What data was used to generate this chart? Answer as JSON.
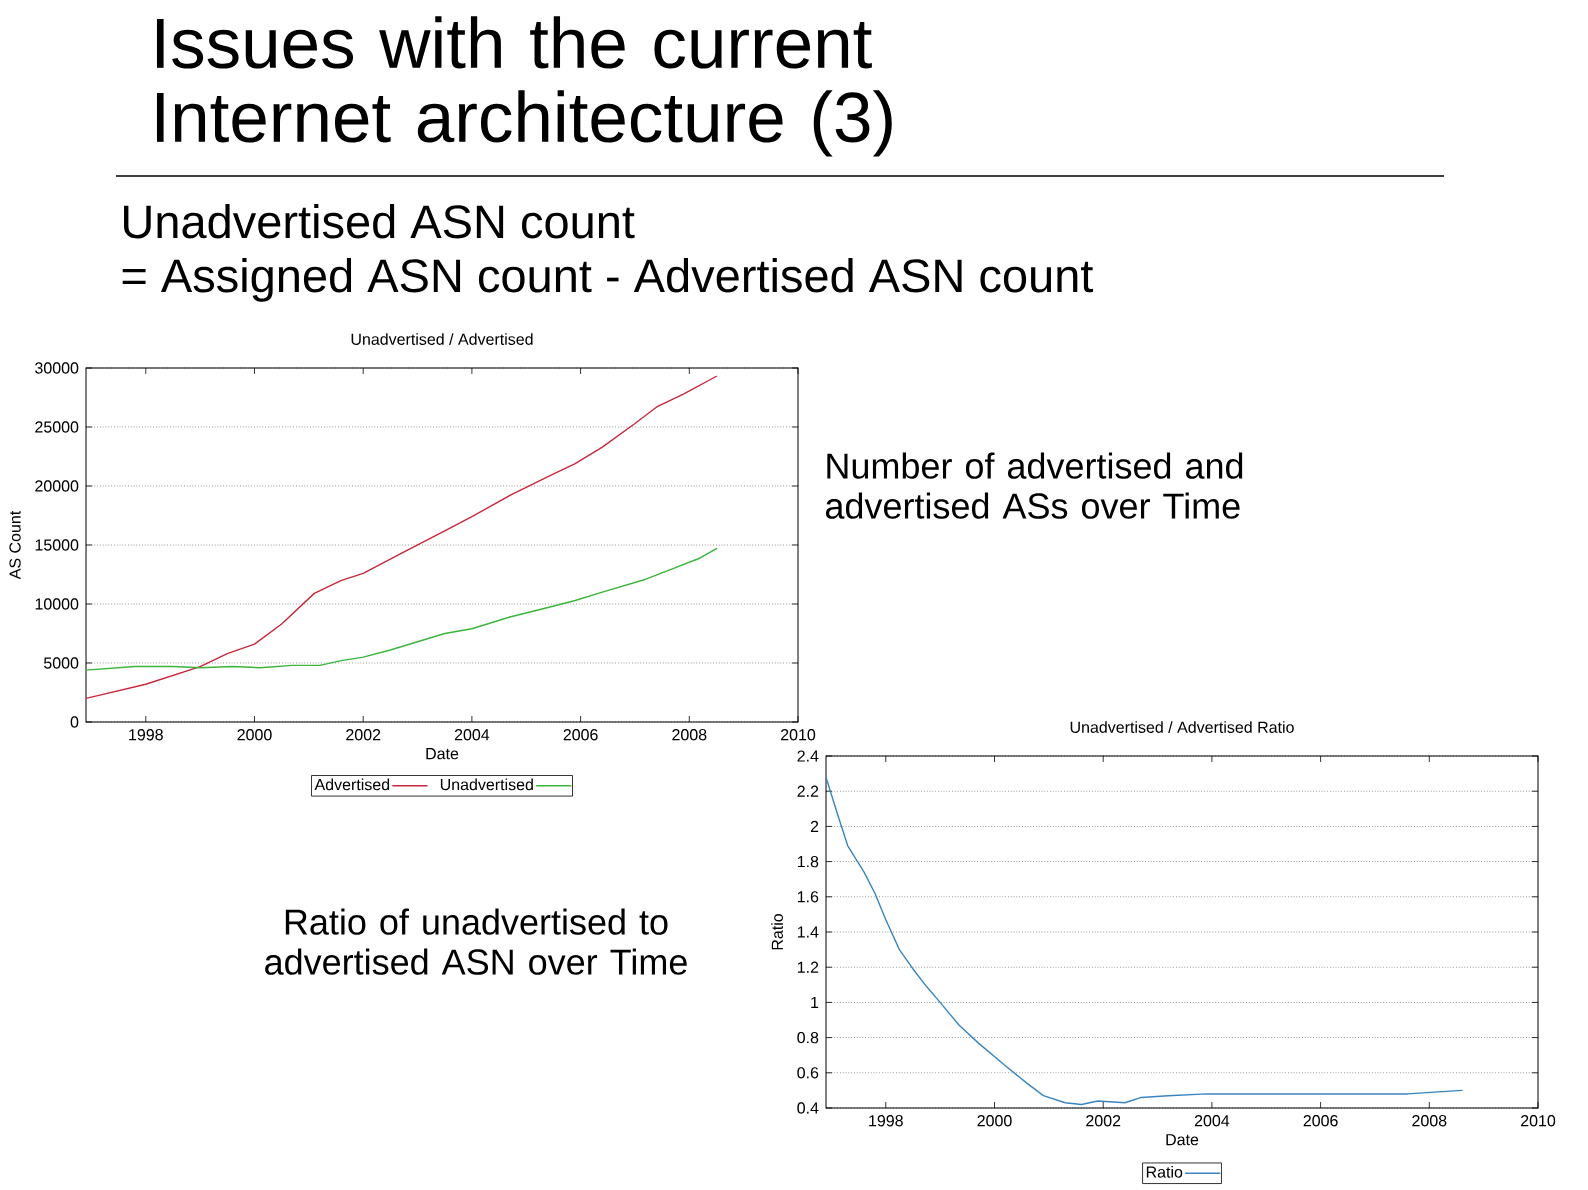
{
  "chart_data": [
    {
      "type": "line",
      "title": "Unadvertised / Advertised",
      "xlabel": "Date",
      "ylabel": "AS Count",
      "annotations": [
        "Issues with the current Internet architecture (3)",
        "Unadvertised ASN count",
        "= Assigned ASN count - Advertised ASN count",
        "Number of advertised and advertised ASs over Time"
      ],
      "series": [
        {
          "name": "Advertised",
          "color": "#c8283c",
          "x": [
            1996.9,
            1998.0,
            1999.0,
            1999.5,
            2000.0,
            2000.5,
            2001.1,
            2001.6,
            2002.0,
            2002.7,
            2003.5,
            2004.0,
            2004.7,
            2005.4,
            2005.9,
            2006.4,
            2007.0,
            2007.4,
            2007.9,
            2008.5
          ],
          "values": [
            2000,
            3200,
            4700,
            5800,
            6600,
            8300,
            10900,
            12000,
            12600,
            14300,
            16200,
            17400,
            19200,
            20800,
            21900,
            23300,
            25300,
            26700,
            27800,
            29300
          ]
        },
        {
          "name": "Unadvertised",
          "color": "#3cb43c",
          "x": [
            1996.9,
            1997.8,
            1998.5,
            1999.0,
            1999.6,
            2000.1,
            2000.7,
            2001.2,
            2001.6,
            2002.0,
            2002.5,
            2003.0,
            2003.5,
            2004.0,
            2004.7,
            2005.4,
            2005.9,
            2006.4,
            2007.2,
            2007.7,
            2008.2,
            2008.5
          ],
          "values": [
            4400,
            4700,
            4700,
            4600,
            4700,
            4600,
            4800,
            4800,
            5200,
            5500,
            6100,
            6800,
            7500,
            7900,
            8900,
            9700,
            10300,
            11000,
            12100,
            13000,
            13900,
            14700
          ]
        }
      ],
      "xlim": [
        1996.9,
        2010
      ],
      "xticks": [
        1998,
        2000,
        2002,
        2004,
        2006,
        2008,
        2010
      ],
      "ylim": [
        0,
        30000
      ],
      "yticks": [
        0,
        5000,
        10000,
        15000,
        20000,
        25000,
        30000
      ],
      "grid": "y",
      "legend": "bottom",
      "marker": "none",
      "line_style": "solid"
    },
    {
      "type": "line",
      "title": "Unadvertised / Advertised Ratio",
      "xlabel": "Date",
      "ylabel": "Ratio",
      "annotations": [
        "Ratio of unadvertised to advertised ASN over Time"
      ],
      "series": [
        {
          "name": "Ratio",
          "color": "#3a85c0",
          "x": [
            1996.9,
            1997.1,
            1997.3,
            1997.6,
            1997.8,
            1998.0,
            1998.25,
            1998.5,
            1998.75,
            1999.0,
            1999.35,
            1999.7,
            2000.2,
            2000.6,
            2000.9,
            2001.3,
            2001.6,
            2001.9,
            2002.4,
            2002.7,
            2003.2,
            2003.9,
            2004.6,
            2005.4,
            2006.1,
            2006.8,
            2007.6,
            2008.1,
            2008.6
          ],
          "values": [
            2.28,
            2.08,
            1.89,
            1.74,
            1.62,
            1.47,
            1.3,
            1.19,
            1.09,
            1.0,
            0.87,
            0.77,
            0.64,
            0.54,
            0.47,
            0.43,
            0.42,
            0.44,
            0.43,
            0.46,
            0.47,
            0.48,
            0.48,
            0.48,
            0.48,
            0.48,
            0.48,
            0.49,
            0.5
          ]
        }
      ],
      "xlim": [
        1996.9,
        2010
      ],
      "xticks": [
        1998,
        2000,
        2002,
        2004,
        2006,
        2008,
        2010
      ],
      "ylim": [
        0.4,
        2.4
      ],
      "yticks": [
        0.4,
        0.6,
        0.8,
        1,
        1.2,
        1.4,
        1.6,
        1.8,
        2,
        2.2,
        2.4
      ],
      "grid": "y",
      "legend": "bottom",
      "marker": "none",
      "line_style": "solid"
    }
  ]
}
